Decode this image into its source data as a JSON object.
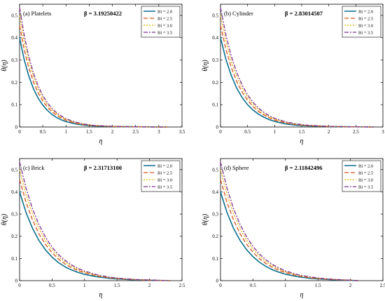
{
  "colors": {
    "axis": "#000000",
    "series": [
      "#0a6f8f",
      "#d9531e",
      "#e8b000",
      "#7e2f8e"
    ]
  },
  "chart_data": [
    {
      "type": "line",
      "panel_label": "(a) Platelets",
      "beta_label": "β = 3.19250422",
      "xlabel": "η",
      "ylabel": "θ(η)",
      "xlim": [
        0,
        3.5
      ],
      "ylim": [
        0,
        0.55
      ],
      "xticks": [
        "0",
        "0.5",
        "1",
        "1.5",
        "2",
        "2.5",
        "3",
        "3.5"
      ],
      "yticks": [
        "0",
        "0.1",
        "0.2",
        "0.3",
        "0.4",
        "0.5"
      ],
      "grid": false,
      "legend_position": "top-right",
      "x": [
        0,
        0.1,
        0.2,
        0.3,
        0.4,
        0.5,
        0.6,
        0.7,
        0.8,
        0.9,
        1.0,
        1.2,
        1.4,
        1.6,
        2.0,
        2.5,
        3.0,
        3.19
      ],
      "series": [
        {
          "name": "Bi = 2.0",
          "values": [
            0.4,
            0.301,
            0.227,
            0.171,
            0.129,
            0.098,
            0.074,
            0.056,
            0.042,
            0.032,
            0.024,
            0.014,
            0.008,
            0.005,
            0.002,
            0.001,
            0.0,
            0.0
          ]
        },
        {
          "name": "Bi = 2.5",
          "values": [
            0.455,
            0.347,
            0.264,
            0.201,
            0.153,
            0.117,
            0.089,
            0.068,
            0.052,
            0.04,
            0.03,
            0.017,
            0.01,
            0.006,
            0.002,
            0.001,
            0.0,
            0.0
          ]
        },
        {
          "name": "Bi = 3.0",
          "values": [
            0.5,
            0.382,
            0.292,
            0.223,
            0.17,
            0.13,
            0.1,
            0.076,
            0.058,
            0.045,
            0.034,
            0.02,
            0.012,
            0.007,
            0.002,
            0.001,
            0.0,
            0.0
          ]
        },
        {
          "name": "Bi = 3.5",
          "values": [
            0.535,
            0.41,
            0.314,
            0.24,
            0.184,
            0.141,
            0.108,
            0.083,
            0.063,
            0.049,
            0.037,
            0.022,
            0.013,
            0.007,
            0.003,
            0.001,
            0.0,
            0.0
          ]
        }
      ]
    },
    {
      "type": "line",
      "panel_label": "(b) Cylinder",
      "beta_label": "β = 2.83014507",
      "xlabel": "η",
      "ylabel": "θ(η)",
      "xlim": [
        0,
        3
      ],
      "ylim": [
        0,
        0.55
      ],
      "xticks": [
        "0",
        "0.5",
        "1",
        "1.5",
        "2",
        "2.5",
        "3"
      ],
      "yticks": [
        "0",
        "0.1",
        "0.2",
        "0.3",
        "0.4",
        "0.5"
      ],
      "grid": false,
      "legend_position": "top-right",
      "x": [
        0,
        0.1,
        0.2,
        0.3,
        0.4,
        0.5,
        0.6,
        0.7,
        0.8,
        0.9,
        1.0,
        1.2,
        1.4,
        1.6,
        2.0,
        2.4,
        2.83
      ],
      "series": [
        {
          "name": "Bi = 2.0",
          "values": [
            0.4,
            0.303,
            0.23,
            0.174,
            0.132,
            0.1,
            0.076,
            0.058,
            0.044,
            0.033,
            0.025,
            0.014,
            0.008,
            0.005,
            0.002,
            0.001,
            0.0
          ]
        },
        {
          "name": "Bi = 2.5",
          "values": [
            0.455,
            0.349,
            0.267,
            0.204,
            0.156,
            0.12,
            0.092,
            0.07,
            0.054,
            0.041,
            0.031,
            0.018,
            0.011,
            0.006,
            0.002,
            0.001,
            0.0
          ]
        },
        {
          "name": "Bi = 3.0",
          "values": [
            0.5,
            0.384,
            0.295,
            0.226,
            0.174,
            0.133,
            0.102,
            0.079,
            0.06,
            0.046,
            0.035,
            0.021,
            0.012,
            0.007,
            0.003,
            0.001,
            0.0
          ]
        },
        {
          "name": "Bi = 3.5",
          "values": [
            0.535,
            0.412,
            0.317,
            0.244,
            0.188,
            0.144,
            0.111,
            0.085,
            0.066,
            0.05,
            0.039,
            0.023,
            0.014,
            0.008,
            0.003,
            0.001,
            0.0
          ]
        }
      ]
    },
    {
      "type": "line",
      "panel_label": "(c) Brick",
      "beta_label": "β = 2.31713100",
      "xlabel": "η",
      "ylabel": "θ(η)",
      "xlim": [
        0,
        2.5
      ],
      "ylim": [
        0,
        0.55
      ],
      "xticks": [
        "0",
        "0.5",
        "1",
        "1.5",
        "2",
        "2.5"
      ],
      "yticks": [
        "0",
        "0.1",
        "0.2",
        "0.3",
        "0.4",
        "0.5"
      ],
      "grid": false,
      "legend_position": "top-right",
      "x": [
        0,
        0.1,
        0.2,
        0.3,
        0.4,
        0.5,
        0.6,
        0.7,
        0.8,
        0.9,
        1.0,
        1.2,
        1.4,
        1.6,
        1.8,
        2.0,
        2.317
      ],
      "series": [
        {
          "name": "Bi = 2.0",
          "values": [
            0.4,
            0.306,
            0.235,
            0.18,
            0.138,
            0.106,
            0.081,
            0.062,
            0.048,
            0.037,
            0.028,
            0.017,
            0.01,
            0.006,
            0.003,
            0.002,
            0.0
          ]
        },
        {
          "name": "Bi = 2.5",
          "values": [
            0.455,
            0.352,
            0.272,
            0.21,
            0.163,
            0.126,
            0.097,
            0.075,
            0.058,
            0.045,
            0.035,
            0.021,
            0.012,
            0.007,
            0.004,
            0.002,
            0.0
          ]
        },
        {
          "name": "Bi = 3.0",
          "values": [
            0.5,
            0.387,
            0.3,
            0.233,
            0.18,
            0.14,
            0.108,
            0.084,
            0.065,
            0.05,
            0.039,
            0.023,
            0.014,
            0.008,
            0.005,
            0.003,
            0.0
          ]
        },
        {
          "name": "Bi = 3.5",
          "values": [
            0.535,
            0.416,
            0.323,
            0.251,
            0.195,
            0.151,
            0.117,
            0.091,
            0.071,
            0.055,
            0.043,
            0.026,
            0.015,
            0.009,
            0.005,
            0.003,
            0.0
          ]
        }
      ]
    },
    {
      "type": "line",
      "panel_label": "(d) Sphere",
      "beta_label": "β = 2.11842496",
      "xlabel": "η",
      "ylabel": "θ(η)",
      "xlim": [
        0,
        2.5
      ],
      "ylim": [
        0,
        0.55
      ],
      "xticks": [
        "0",
        "0.5",
        "1",
        "1.5",
        "2",
        "2.5"
      ],
      "yticks": [
        "0",
        "0.1",
        "0.2",
        "0.3",
        "0.4",
        "0.5"
      ],
      "grid": false,
      "legend_position": "top-right",
      "x": [
        0,
        0.1,
        0.2,
        0.3,
        0.4,
        0.5,
        0.6,
        0.7,
        0.8,
        0.9,
        1.0,
        1.2,
        1.4,
        1.6,
        1.8,
        2.0,
        2.118
      ],
      "series": [
        {
          "name": "Bi = 2.0",
          "values": [
            0.4,
            0.307,
            0.236,
            0.182,
            0.14,
            0.108,
            0.083,
            0.064,
            0.049,
            0.038,
            0.029,
            0.017,
            0.01,
            0.006,
            0.003,
            0.001,
            0.0
          ]
        },
        {
          "name": "Bi = 2.5",
          "values": [
            0.455,
            0.353,
            0.274,
            0.212,
            0.165,
            0.128,
            0.099,
            0.077,
            0.06,
            0.046,
            0.036,
            0.021,
            0.012,
            0.007,
            0.004,
            0.002,
            0.0
          ]
        },
        {
          "name": "Bi = 3.0",
          "values": [
            0.5,
            0.389,
            0.302,
            0.235,
            0.183,
            0.142,
            0.111,
            0.086,
            0.067,
            0.052,
            0.04,
            0.024,
            0.014,
            0.008,
            0.005,
            0.002,
            0.0
          ]
        },
        {
          "name": "Bi = 3.5",
          "values": [
            0.535,
            0.417,
            0.325,
            0.254,
            0.198,
            0.154,
            0.12,
            0.094,
            0.073,
            0.057,
            0.044,
            0.026,
            0.016,
            0.009,
            0.005,
            0.002,
            0.0
          ]
        }
      ]
    }
  ]
}
